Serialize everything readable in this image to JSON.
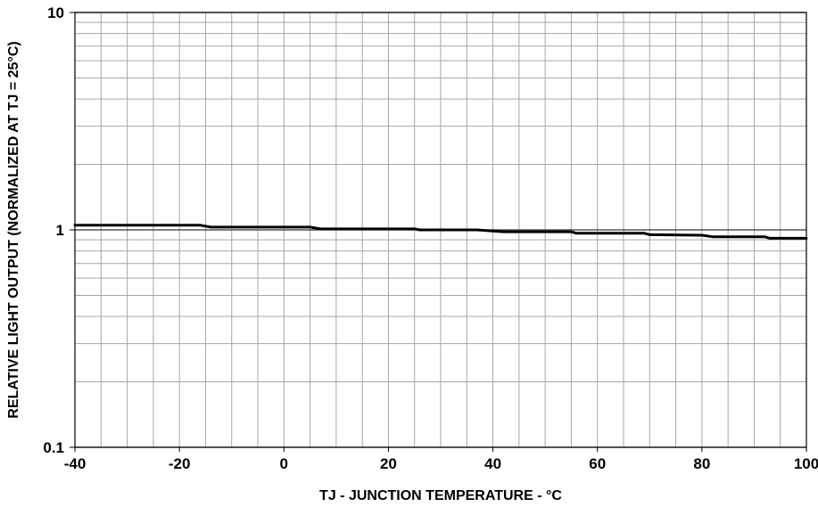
{
  "chart_data": {
    "type": "line",
    "title": "",
    "xlabel": "TJ - JUNCTION TEMPERATURE - °C",
    "ylabel": "RELATIVE LIGHT OUTPUT (NORMALIZED AT TJ = 25°C)",
    "xlim": [
      -40,
      100
    ],
    "ylim": [
      0.1,
      10
    ],
    "yscale": "log",
    "grid": true,
    "x_ticks": [
      -40,
      -20,
      0,
      20,
      40,
      60,
      80,
      100
    ],
    "x_tick_labels": [
      "-40",
      "-20",
      "0",
      "20",
      "40",
      "60",
      "80",
      "100"
    ],
    "y_ticks": [
      0.1,
      1,
      10
    ],
    "y_tick_labels": [
      "0.1",
      "1",
      "10"
    ],
    "line_color": "#000000",
    "grid_color": "#a6a6a6",
    "series": [
      {
        "x": [
          -40,
          -16,
          -14,
          -6,
          5,
          7,
          25,
          26,
          37,
          42,
          55,
          56,
          69,
          70,
          80,
          82,
          92,
          93,
          100
        ],
        "y": [
          1.05,
          1.05,
          1.03,
          1.03,
          1.03,
          1.01,
          1.01,
          1.0,
          1.0,
          0.98,
          0.98,
          0.965,
          0.965,
          0.95,
          0.945,
          0.93,
          0.93,
          0.915,
          0.915
        ]
      }
    ]
  }
}
